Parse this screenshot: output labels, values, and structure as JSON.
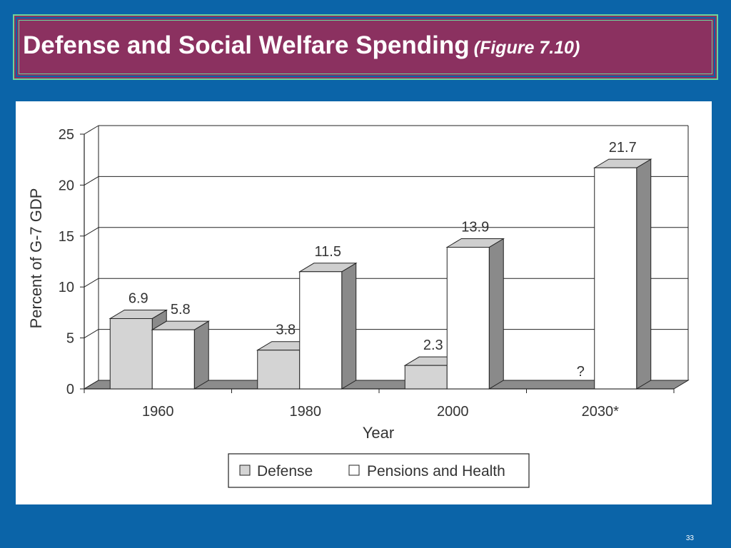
{
  "slide": {
    "title": "Defense and Social Welfare Spending",
    "subtitle": "(Figure 7.10)",
    "page_number": "33"
  },
  "colors": {
    "background": "#0b64a8",
    "title_bar": "#8b3160",
    "title_border": "#6fd39a",
    "defense_bar": "#d4d4d4",
    "pensions_bar": "#ffffff"
  },
  "chart_data": {
    "type": "bar",
    "categories": [
      "1960",
      "1980",
      "2000",
      "2030*"
    ],
    "series": [
      {
        "name": "Defense",
        "values": [
          6.9,
          3.8,
          2.3,
          null
        ],
        "labels": [
          "6.9",
          "3.8",
          "2.3",
          "?"
        ]
      },
      {
        "name": "Pensions and Health",
        "values": [
          5.8,
          11.5,
          13.9,
          21.7
        ],
        "labels": [
          "5.8",
          "11.5",
          "13.9",
          "21.7"
        ]
      }
    ],
    "xlabel": "Year",
    "ylabel": "Percent of G-7 GDP",
    "ylim": [
      0,
      25
    ],
    "yticks": [
      "0",
      "5",
      "10",
      "15",
      "20",
      "25"
    ],
    "grid": true,
    "legend": "bottom"
  }
}
